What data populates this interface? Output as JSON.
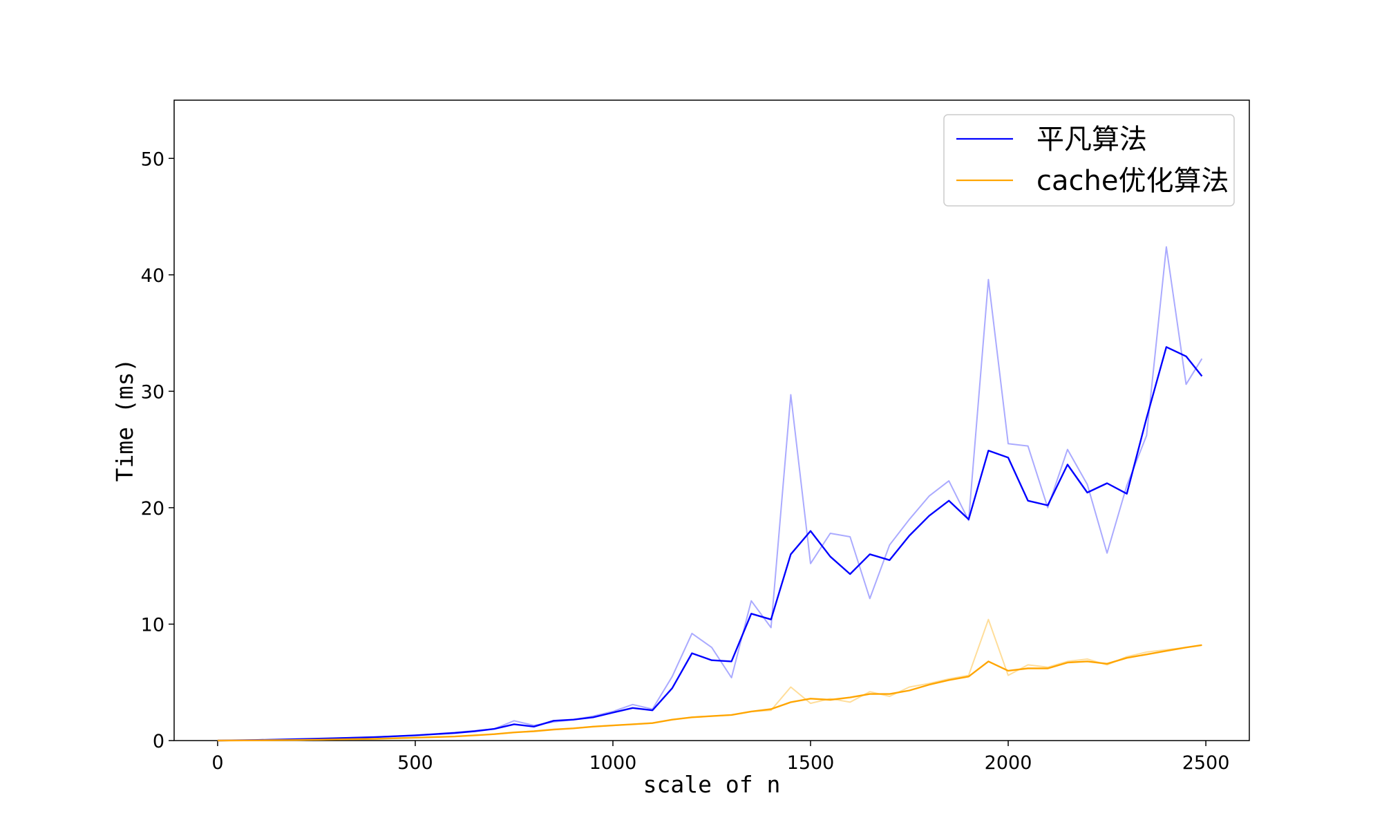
{
  "chart_data": {
    "type": "line",
    "title": "",
    "xlabel": "scale of n",
    "ylabel": "Time (ms)",
    "xlim": [
      -110,
      2610
    ],
    "ylim": [
      0,
      55
    ],
    "xticks": [
      0,
      500,
      1000,
      1500,
      2000,
      2500
    ],
    "yticks": [
      0,
      10,
      20,
      30,
      40,
      50
    ],
    "xtick_labels": [
      "0",
      "500",
      "1000",
      "1500",
      "2000",
      "2500"
    ],
    "ytick_labels": [
      "0",
      "10",
      "20",
      "30",
      "40",
      "50"
    ],
    "grid": false,
    "legend_position": "top-right",
    "series": [
      {
        "name": "平凡算法",
        "color": "#0000ff",
        "raw_color": "#aaaaff",
        "x": [
          0,
          100,
          200,
          300,
          400,
          500,
          600,
          650,
          700,
          750,
          800,
          850,
          900,
          950,
          1000,
          1050,
          1100,
          1150,
          1200,
          1250,
          1300,
          1350,
          1400,
          1450,
          1500,
          1550,
          1600,
          1650,
          1700,
          1750,
          1800,
          1850,
          1900,
          1950,
          2000,
          2050,
          2100,
          2150,
          2200,
          2250,
          2300,
          2350,
          2400,
          2450,
          2490
        ],
        "raw": [
          0,
          0.05,
          0.1,
          0.2,
          0.3,
          0.45,
          0.7,
          0.85,
          1.0,
          1.7,
          1.3,
          1.6,
          1.8,
          2.1,
          2.5,
          3.1,
          2.7,
          5.5,
          9.2,
          8.0,
          5.4,
          12.0,
          9.7,
          29.7,
          15.2,
          17.8,
          17.5,
          12.2,
          16.8,
          19.0,
          21.0,
          22.3,
          18.9,
          39.6,
          25.5,
          25.3,
          20.0,
          25.0,
          22.0,
          16.1,
          21.9,
          26.2,
          42.4,
          30.6,
          32.8
        ],
        "smooth": [
          0,
          0.05,
          0.12,
          0.2,
          0.3,
          0.45,
          0.65,
          0.8,
          1.0,
          1.4,
          1.2,
          1.7,
          1.8,
          2.0,
          2.4,
          2.8,
          2.6,
          4.5,
          7.5,
          6.9,
          6.8,
          10.9,
          10.4,
          16.0,
          18.0,
          15.8,
          14.3,
          16.0,
          15.5,
          17.6,
          19.3,
          20.6,
          19.0,
          24.9,
          24.3,
          20.6,
          20.2,
          23.7,
          21.3,
          22.1,
          21.2,
          27.7,
          33.8,
          33.0,
          31.3
        ]
      },
      {
        "name": "cache优化算法",
        "color": "#ffa500",
        "raw_color": "#ffdd99",
        "x": [
          0,
          100,
          200,
          300,
          400,
          500,
          600,
          650,
          700,
          750,
          800,
          850,
          900,
          950,
          1000,
          1050,
          1100,
          1150,
          1200,
          1250,
          1300,
          1350,
          1400,
          1450,
          1500,
          1550,
          1600,
          1650,
          1700,
          1750,
          1800,
          1850,
          1900,
          1950,
          2000,
          2050,
          2100,
          2150,
          2200,
          2250,
          2300,
          2350,
          2400,
          2450,
          2490
        ],
        "raw": [
          0,
          0.02,
          0.05,
          0.1,
          0.15,
          0.25,
          0.35,
          0.45,
          0.55,
          0.7,
          0.8,
          0.95,
          1.05,
          1.2,
          1.3,
          1.4,
          1.5,
          1.8,
          2.0,
          2.1,
          2.2,
          2.5,
          2.6,
          4.6,
          3.2,
          3.6,
          3.3,
          4.2,
          3.8,
          4.6,
          4.9,
          5.3,
          5.6,
          10.4,
          5.6,
          6.5,
          6.3,
          6.8,
          7.0,
          6.5,
          7.2,
          7.6,
          7.8,
          8.0,
          8.2
        ],
        "smooth": [
          0,
          0.02,
          0.05,
          0.1,
          0.15,
          0.25,
          0.35,
          0.45,
          0.55,
          0.7,
          0.8,
          0.95,
          1.05,
          1.2,
          1.3,
          1.4,
          1.5,
          1.8,
          2.0,
          2.1,
          2.2,
          2.5,
          2.7,
          3.3,
          3.6,
          3.5,
          3.7,
          4.0,
          4.0,
          4.3,
          4.8,
          5.2,
          5.5,
          6.8,
          6.0,
          6.2,
          6.2,
          6.7,
          6.8,
          6.6,
          7.1,
          7.4,
          7.7,
          8.0,
          8.2
        ]
      }
    ]
  }
}
